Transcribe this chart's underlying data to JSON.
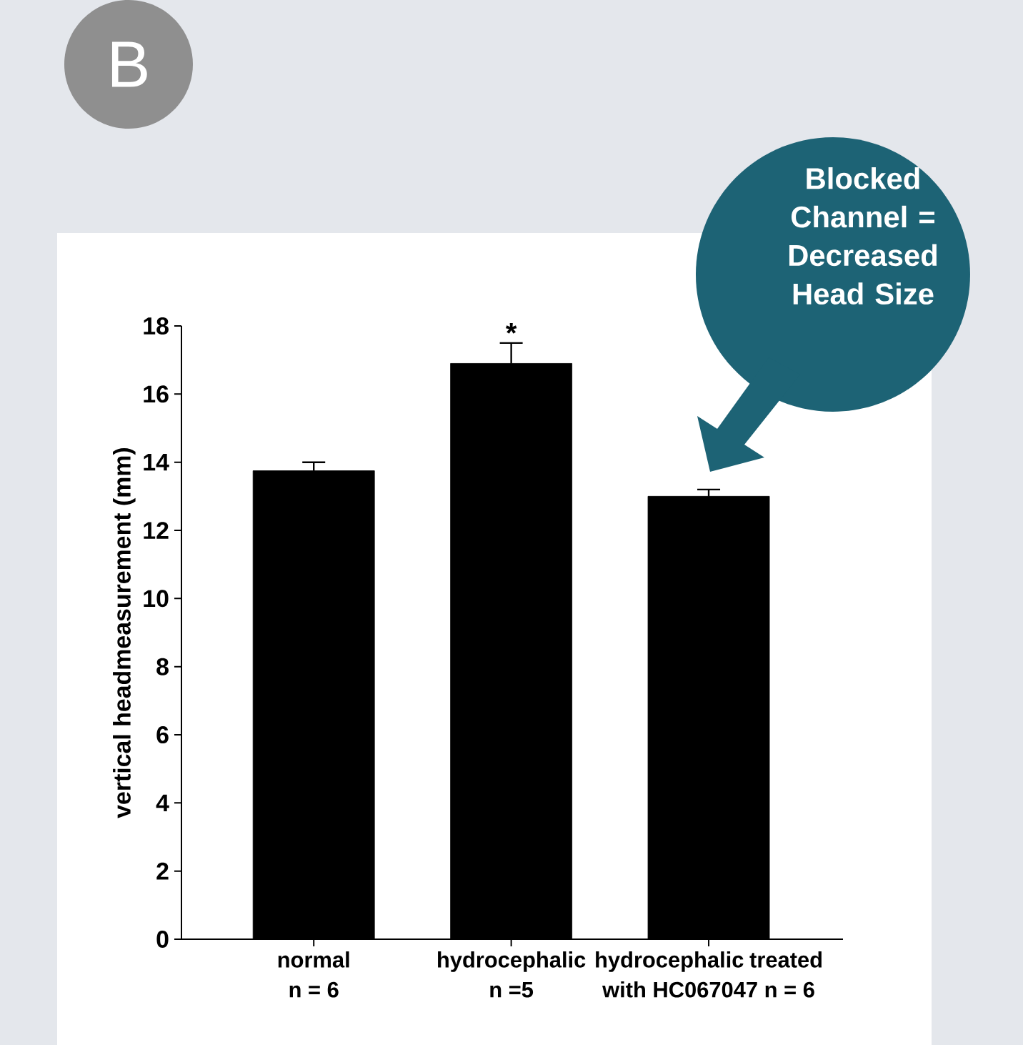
{
  "chart_data": {
    "type": "bar",
    "ylabel": "vertical headmeasurement (mm)",
    "categories": [
      "normal n = 6",
      "hydrocephalic n =5",
      "hydrocephalic treated with HC067047 n = 6"
    ],
    "values": [
      13.75,
      16.9,
      13.0
    ],
    "errors": [
      0.25,
      0.6,
      0.2
    ],
    "color": "#000000",
    "ylim": [
      0,
      18
    ],
    "yticks": [
      0,
      2,
      4,
      6,
      8,
      10,
      12,
      14,
      16,
      18
    ],
    "annotations": [
      "B",
      {
        "text": "*",
        "x": "hydrocephalic n =5",
        "y": 17.5
      },
      "Blocked Channel = Decreased Head Size"
    ]
  }
}
